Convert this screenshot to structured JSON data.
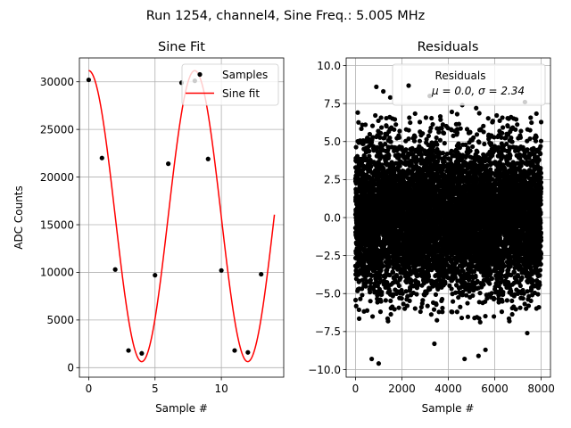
{
  "figure": {
    "suptitle": "Run 1254, channel4, Sine Freq.: 5.005 MHz"
  },
  "colors": {
    "fit_line": "#ff0000",
    "markers": "#000000",
    "grid": "#b0b0b0"
  },
  "chart_data": [
    {
      "type": "line",
      "title": "Sine Fit",
      "xlabel": "Sample #",
      "ylabel": "ADC Counts",
      "xlim": [
        -0.7,
        14.7
      ],
      "ylim": [
        -1000,
        32500
      ],
      "xticks": [
        0,
        5,
        10
      ],
      "xtick_labels": [
        "0",
        "5",
        "10"
      ],
      "yticks": [
        0,
        5000,
        10000,
        15000,
        20000,
        25000,
        30000
      ],
      "ytick_labels": [
        "0",
        "5000",
        "10000",
        "15000",
        "20000",
        "25000",
        "30000"
      ],
      "grid": true,
      "legend": {
        "position": "top-right",
        "entries": [
          "Samples",
          "Sine fit"
        ]
      },
      "samples": {
        "name": "Samples",
        "x": [
          0,
          1,
          2,
          3,
          4,
          5,
          6,
          7,
          8,
          9,
          10,
          11,
          12,
          13
        ],
        "y": [
          30200,
          22000,
          10300,
          1800,
          1500,
          9700,
          21400,
          29900,
          30100,
          21900,
          10200,
          1800,
          1600,
          9800
        ]
      },
      "fit": {
        "name": "Sine fit",
        "amplitude": 15270,
        "offset": 15900,
        "period_samples": 7.992,
        "phase_rad": 1.57,
        "x_range": [
          0,
          14
        ]
      }
    },
    {
      "type": "scatter",
      "title": "Residuals",
      "xlabel": "Sample #",
      "ylabel": "",
      "xlim": [
        -400,
        8400
      ],
      "ylim": [
        -10.5,
        10.5
      ],
      "xticks": [
        0,
        2000,
        4000,
        6000,
        8000
      ],
      "xtick_labels": [
        "0",
        "2000",
        "4000",
        "6000",
        "8000"
      ],
      "yticks": [
        -10.0,
        -7.5,
        -5.0,
        -2.5,
        0.0,
        2.5,
        5.0,
        7.5,
        10.0
      ],
      "ytick_labels": [
        "−10.0",
        "−7.5",
        "−5.0",
        "−2.5",
        "0.0",
        "2.5",
        "5.0",
        "7.5",
        "10.0"
      ],
      "grid": true,
      "legend": {
        "position": "top-right",
        "title": "Residuals",
        "entry": "μ = 0.0, σ = 2.34"
      },
      "series": {
        "name": "Residuals",
        "n_points": 8000,
        "x_range": [
          0,
          7999
        ],
        "mean": 0.0,
        "std": 2.34,
        "extremes": [
          {
            "x": 1000,
            "y": -9.6
          },
          {
            "x": 700,
            "y": -9.3
          },
          {
            "x": 4700,
            "y": -9.3
          },
          {
            "x": 5300,
            "y": -9.1
          },
          {
            "x": 900,
            "y": 8.6
          },
          {
            "x": 1200,
            "y": 8.3
          },
          {
            "x": 1500,
            "y": 7.9
          },
          {
            "x": 3200,
            "y": 8.0
          },
          {
            "x": 4600,
            "y": 7.4
          },
          {
            "x": 5200,
            "y": 7.2
          },
          {
            "x": 7300,
            "y": 7.6
          },
          {
            "x": 3400,
            "y": -8.3
          },
          {
            "x": 6600,
            "y": 6.5
          },
          {
            "x": 5600,
            "y": -8.7
          },
          {
            "x": 7400,
            "y": -7.6
          },
          {
            "x": 7900,
            "y": -5.9
          }
        ]
      }
    }
  ]
}
